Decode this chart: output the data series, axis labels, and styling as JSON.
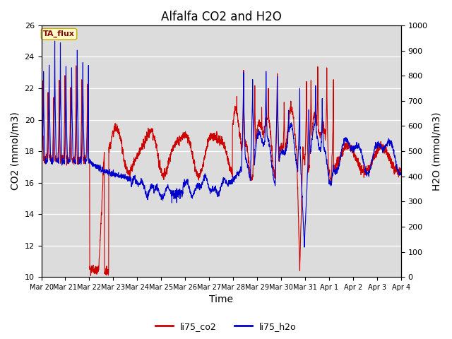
{
  "title": "Alfalfa CO2 and H2O",
  "xlabel": "Time",
  "ylabel_left": "CO2 (mmol/m3)",
  "ylabel_right": "H2O (mmol/m3)",
  "ylim_left": [
    10,
    26
  ],
  "ylim_right": [
    0,
    1000
  ],
  "yticks_left": [
    10,
    12,
    14,
    16,
    18,
    20,
    22,
    24,
    26
  ],
  "yticks_right": [
    0,
    100,
    200,
    300,
    400,
    500,
    600,
    700,
    800,
    900,
    1000
  ],
  "xtick_labels": [
    "Mar 20",
    "Mar 21",
    "Mar 22",
    "Mar 23",
    "Mar 24",
    "Mar 25",
    "Mar 26",
    "Mar 27",
    "Mar 28",
    "Mar 29",
    "Mar 30",
    "Mar 31",
    "Apr 1",
    "Apr 2",
    "Apr 3",
    "Apr 4"
  ],
  "color_co2": "#cc0000",
  "color_h2o": "#0000cc",
  "legend_co2": "li75_co2",
  "legend_h2o": "li75_h2o",
  "annotation_text": "TA_flux",
  "plot_bg_color": "#dcdcdc",
  "title_fontsize": 12,
  "axis_label_fontsize": 10,
  "tick_fontsize": 8,
  "legend_fontsize": 9,
  "linewidth": 0.8
}
